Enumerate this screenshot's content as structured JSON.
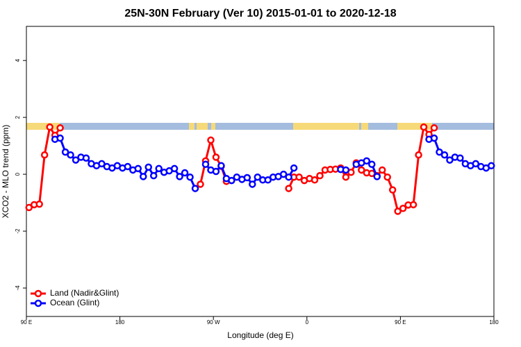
{
  "chart_data": {
    "type": "line",
    "title": "25N-30N February (Ver 10)   2015-01-01 to 2020-12-18",
    "xlabel": "Longitude (deg E)",
    "ylabel": "XCO2 - MLO trend (ppm)",
    "xlim": [
      90,
      540
    ],
    "ylim": [
      -5.0,
      5.2
    ],
    "xticks": [
      {
        "value": 90,
        "label": "90 E"
      },
      180,
      {
        "value": 270,
        "label": "90 W"
      },
      {
        "value": 360,
        "label": "0"
      },
      {
        "value": 450,
        "label": "90 E"
      },
      {
        "value": 540,
        "label": "180"
      }
    ],
    "yticks": [
      -4,
      -2,
      0,
      2,
      4
    ],
    "legend": "bottom-left",
    "x": [
      92.5,
      97.5,
      102.5,
      107.5,
      112.5,
      117.5,
      122.5,
      127.5,
      132.5,
      137.5,
      142.5,
      147.5,
      152.5,
      157.5,
      162.5,
      167.5,
      172.5,
      177.5,
      182.5,
      187.5,
      192.5,
      197.5,
      202.5,
      207.5,
      212.5,
      217.5,
      222.5,
      227.5,
      232.5,
      237.5,
      242.5,
      247.5,
      252.5,
      257.5,
      262.5,
      267.5,
      272.5,
      277.5,
      282.5,
      287.5,
      292.5,
      297.5,
      302.5,
      307.5,
      312.5,
      317.5,
      322.5,
      327.5,
      332.5,
      337.5,
      342.5,
      347.5,
      352.5,
      357.5,
      362.5,
      367.5,
      372.5,
      377.5,
      382.5,
      387.5,
      392.5,
      397.5,
      402.5,
      407.5,
      412.5,
      417.5,
      422.5,
      427.5,
      432.5,
      437.5,
      442.5,
      447.5,
      452.5,
      457.5,
      462.5,
      467.5,
      472.5,
      477.5,
      482.5,
      487.5,
      492.5,
      497.5,
      502.5,
      507.5,
      512.5,
      517.5,
      522.5,
      527.5,
      532.5,
      537.5
    ],
    "series": [
      {
        "name": "Land (Nadir&Glint)",
        "color": "#ff0000",
        "values": [
          -1.17,
          -1.07,
          -1.05,
          0.68,
          1.66,
          1.37,
          1.63,
          null,
          null,
          null,
          null,
          null,
          null,
          null,
          null,
          null,
          null,
          null,
          null,
          null,
          null,
          null,
          null,
          null,
          null,
          null,
          null,
          null,
          null,
          null,
          null,
          null,
          null,
          -0.35,
          0.47,
          1.2,
          0.6,
          0.28,
          -0.25,
          null,
          null,
          null,
          null,
          null,
          null,
          null,
          null,
          null,
          null,
          null,
          -0.5,
          -0.1,
          -0.1,
          -0.22,
          -0.15,
          -0.2,
          -0.05,
          0.15,
          0.17,
          0.18,
          0.22,
          -0.1,
          0.07,
          0.4,
          0.15,
          0.05,
          0.03,
          -0.05,
          0.15,
          -0.1,
          -0.55,
          -1.3,
          -1.2,
          -1.08,
          -1.07,
          0.68,
          1.66,
          1.4,
          1.63,
          null,
          null,
          null,
          null,
          null,
          null,
          null,
          null,
          null,
          null,
          null
        ]
      },
      {
        "name": "Ocean (Glint)",
        "color": "#0000ff",
        "values": [
          null,
          null,
          null,
          null,
          null,
          1.23,
          1.27,
          0.78,
          0.68,
          0.5,
          0.6,
          0.57,
          0.37,
          0.3,
          0.37,
          0.27,
          0.22,
          0.3,
          0.22,
          0.27,
          0.15,
          0.2,
          -0.08,
          0.25,
          -0.05,
          0.2,
          0.07,
          0.12,
          0.2,
          -0.08,
          0.05,
          -0.1,
          -0.5,
          null,
          0.35,
          0.15,
          0.1,
          0.3,
          -0.15,
          -0.22,
          -0.1,
          -0.18,
          -0.12,
          -0.35,
          -0.1,
          -0.2,
          -0.2,
          -0.1,
          -0.08,
          0.0,
          -0.1,
          0.22,
          null,
          null,
          null,
          null,
          null,
          null,
          null,
          null,
          0.17,
          0.15,
          null,
          0.35,
          0.4,
          0.47,
          0.35,
          -0.08,
          null,
          null,
          null,
          null,
          null,
          null,
          null,
          null,
          null,
          1.23,
          1.27,
          0.78,
          0.68,
          0.5,
          0.6,
          0.57,
          0.37,
          0.3,
          0.37,
          0.27,
          0.22,
          0.3
        ]
      }
    ]
  }
}
